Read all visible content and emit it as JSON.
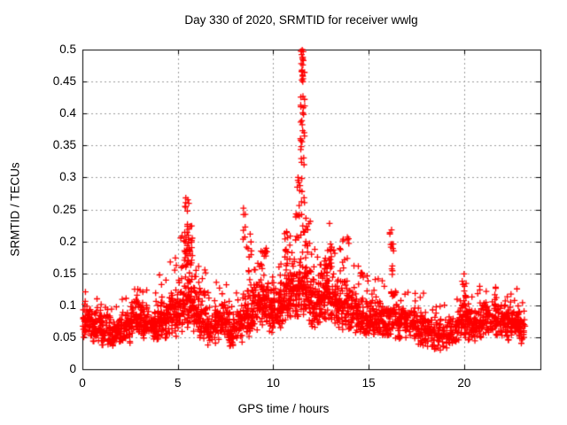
{
  "window": {
    "background": "#ffffff"
  },
  "chart_data": {
    "type": "scatter",
    "title": "Day 330 of 2020, SRMTID for receiver wwlg",
    "xlabel": "GPS time / hours",
    "ylabel": "SRMTID / TECUs",
    "xlim": [
      0,
      24
    ],
    "ylim": [
      0,
      0.5
    ],
    "grid": true,
    "legend": null,
    "x_ticks": [
      {
        "value": 0,
        "label": "0"
      },
      {
        "value": 5,
        "label": "5"
      },
      {
        "value": 10,
        "label": "10"
      },
      {
        "value": 15,
        "label": "15"
      },
      {
        "value": 20,
        "label": "20"
      }
    ],
    "y_ticks": [
      {
        "value": 0.0,
        "label": "0"
      },
      {
        "value": 0.05,
        "label": "0.05"
      },
      {
        "value": 0.1,
        "label": "0.1"
      },
      {
        "value": 0.15,
        "label": "0.15"
      },
      {
        "value": 0.2,
        "label": "0.2"
      },
      {
        "value": 0.25,
        "label": "0.25"
      },
      {
        "value": 0.3,
        "label": "0.3"
      },
      {
        "value": 0.35,
        "label": "0.35"
      },
      {
        "value": 0.4,
        "label": "0.4"
      },
      {
        "value": 0.45,
        "label": "0.45"
      },
      {
        "value": 0.5,
        "label": "0.5"
      }
    ],
    "marker": {
      "shape": "plus",
      "color": "#ff0000",
      "size": 7,
      "stroke": 1.3
    },
    "axis_color": "#000000",
    "grid_color": "#9b9b9b",
    "series_name": "SRMTID",
    "data_extent": {
      "t_start": 0.0,
      "t_end": 23.2,
      "y_min": 0.018,
      "y_max": 0.5
    },
    "notable_peaks": [
      {
        "t": 5.45,
        "y": 0.27
      },
      {
        "t": 8.45,
        "y": 0.25
      },
      {
        "t": 10.7,
        "y": 0.215
      },
      {
        "t": 11.5,
        "y": 0.5
      },
      {
        "t": 12.95,
        "y": 0.23
      },
      {
        "t": 13.8,
        "y": 0.21
      },
      {
        "t": 16.2,
        "y": 0.22
      },
      {
        "t": 20.0,
        "y": 0.15
      }
    ],
    "point_cloud": {
      "seed": 1330,
      "note": "Envelope reconstructed from pixels. bins:[t0,t1,count,y_lo,y_hi,tail_hi,tail_frac] bulk band with sparse high tail; columns:[t0,t1,count,y_lo,y_hi] vertical spike columns; extra_points:[t,y] individually read points.",
      "bins": [
        [
          0.0,
          0.5,
          55,
          0.045,
          0.105,
          0.13,
          0.04
        ],
        [
          0.5,
          1.0,
          55,
          0.042,
          0.098,
          0.115,
          0.03
        ],
        [
          1.0,
          1.5,
          50,
          0.035,
          0.092,
          0.105,
          0.03
        ],
        [
          1.5,
          2.0,
          50,
          0.028,
          0.09,
          0.1,
          0.03
        ],
        [
          2.0,
          2.5,
          55,
          0.04,
          0.1,
          0.115,
          0.04
        ],
        [
          2.5,
          3.0,
          58,
          0.05,
          0.112,
          0.128,
          0.05
        ],
        [
          3.0,
          3.5,
          58,
          0.045,
          0.115,
          0.132,
          0.05
        ],
        [
          3.5,
          4.0,
          55,
          0.04,
          0.102,
          0.12,
          0.04
        ],
        [
          4.0,
          4.5,
          58,
          0.045,
          0.12,
          0.148,
          0.06
        ],
        [
          4.5,
          5.0,
          60,
          0.05,
          0.132,
          0.19,
          0.07
        ],
        [
          5.0,
          5.3,
          38,
          0.055,
          0.15,
          0.21,
          0.1
        ],
        [
          5.3,
          5.8,
          60,
          0.065,
          0.155,
          0,
          0
        ],
        [
          5.8,
          6.15,
          45,
          0.055,
          0.145,
          0.165,
          0.08
        ],
        [
          6.15,
          6.5,
          42,
          0.045,
          0.125,
          0.158,
          0.08
        ],
        [
          6.5,
          7.0,
          50,
          0.035,
          0.105,
          0.125,
          0.05
        ],
        [
          7.0,
          7.6,
          62,
          0.045,
          0.115,
          0.14,
          0.06
        ],
        [
          7.6,
          8.1,
          52,
          0.03,
          0.1,
          0.12,
          0.04
        ],
        [
          8.1,
          8.38,
          30,
          0.04,
          0.105,
          0.125,
          0.04
        ],
        [
          8.38,
          8.9,
          60,
          0.05,
          0.125,
          0,
          0
        ],
        [
          8.9,
          9.35,
          55,
          0.06,
          0.148,
          0.168,
          0.08
        ],
        [
          9.35,
          9.75,
          52,
          0.065,
          0.155,
          0.185,
          0.09
        ],
        [
          9.75,
          10.2,
          55,
          0.055,
          0.13,
          0.152,
          0.06
        ],
        [
          10.2,
          10.55,
          45,
          0.06,
          0.14,
          0.168,
          0.07
        ],
        [
          10.55,
          10.95,
          52,
          0.07,
          0.16,
          0,
          0
        ],
        [
          10.95,
          11.45,
          65,
          0.075,
          0.185,
          0,
          0
        ],
        [
          11.45,
          11.7,
          34,
          0.08,
          0.19,
          0,
          0
        ],
        [
          11.7,
          12.0,
          40,
          0.07,
          0.175,
          0.24,
          0.1
        ],
        [
          12.0,
          12.45,
          55,
          0.06,
          0.16,
          0.19,
          0.08
        ],
        [
          12.45,
          12.8,
          45,
          0.07,
          0.168,
          0,
          0
        ],
        [
          12.8,
          13.15,
          45,
          0.075,
          0.175,
          0,
          0
        ],
        [
          13.15,
          13.55,
          48,
          0.06,
          0.158,
          0.19,
          0.08
        ],
        [
          13.55,
          14.1,
          60,
          0.055,
          0.148,
          0,
          0
        ],
        [
          14.1,
          14.65,
          58,
          0.05,
          0.13,
          0.17,
          0.06
        ],
        [
          14.65,
          15.15,
          55,
          0.048,
          0.122,
          0.16,
          0.05
        ],
        [
          15.15,
          15.65,
          55,
          0.048,
          0.12,
          0.162,
          0.05
        ],
        [
          15.65,
          16.05,
          45,
          0.045,
          0.112,
          0.14,
          0.05
        ],
        [
          16.05,
          16.4,
          40,
          0.05,
          0.128,
          0,
          0
        ],
        [
          16.4,
          16.85,
          48,
          0.045,
          0.112,
          0.132,
          0.04
        ],
        [
          16.85,
          17.45,
          58,
          0.04,
          0.11,
          0.136,
          0.05
        ],
        [
          17.45,
          18.05,
          55,
          0.035,
          0.1,
          0.12,
          0.04
        ],
        [
          18.05,
          18.65,
          50,
          0.03,
          0.092,
          0.11,
          0.03
        ],
        [
          18.65,
          19.25,
          50,
          0.028,
          0.09,
          0.106,
          0.03
        ],
        [
          19.25,
          19.75,
          48,
          0.032,
          0.095,
          0.112,
          0.03
        ],
        [
          19.75,
          20.2,
          48,
          0.048,
          0.108,
          0,
          0
        ],
        [
          20.2,
          20.75,
          52,
          0.04,
          0.105,
          0.122,
          0.04
        ],
        [
          20.75,
          21.25,
          52,
          0.045,
          0.11,
          0.13,
          0.05
        ],
        [
          21.25,
          21.85,
          58,
          0.05,
          0.115,
          0.136,
          0.05
        ],
        [
          21.85,
          22.35,
          52,
          0.04,
          0.106,
          0.12,
          0.04
        ],
        [
          22.35,
          22.85,
          52,
          0.045,
          0.11,
          0.126,
          0.04
        ],
        [
          22.85,
          23.2,
          36,
          0.04,
          0.1,
          0.115,
          0.03
        ]
      ],
      "columns": [
        [
          5.32,
          5.58,
          30,
          0.15,
          0.268
        ],
        [
          5.45,
          5.78,
          18,
          0.13,
          0.225
        ],
        [
          8.38,
          8.56,
          6,
          0.19,
          0.252
        ],
        [
          8.6,
          8.88,
          16,
          0.11,
          0.212
        ],
        [
          9.4,
          9.68,
          8,
          0.15,
          0.19
        ],
        [
          10.58,
          10.9,
          16,
          0.13,
          0.215
        ],
        [
          11.13,
          11.42,
          14,
          0.2,
          0.3
        ],
        [
          11.42,
          11.66,
          44,
          0.2,
          0.5
        ],
        [
          11.45,
          11.6,
          7,
          0.46,
          0.5
        ],
        [
          11.66,
          11.92,
          10,
          0.15,
          0.26
        ],
        [
          12.55,
          12.78,
          6,
          0.15,
          0.2
        ],
        [
          12.82,
          13.08,
          10,
          0.16,
          0.23
        ],
        [
          13.6,
          13.98,
          10,
          0.148,
          0.21
        ],
        [
          14.45,
          14.8,
          6,
          0.13,
          0.17
        ],
        [
          16.08,
          16.32,
          12,
          0.125,
          0.22
        ],
        [
          19.88,
          20.12,
          12,
          0.095,
          0.15
        ]
      ],
      "extra_points": [
        [
          11.52,
          0.5
        ],
        [
          11.49,
          0.497
        ],
        [
          11.55,
          0.488
        ],
        [
          11.47,
          0.478
        ],
        [
          5.42,
          0.268
        ],
        [
          8.44,
          0.252
        ],
        [
          11.3,
          0.3
        ],
        [
          10.7,
          0.215
        ],
        [
          16.2,
          0.218
        ],
        [
          12.95,
          0.228
        ],
        [
          20.0,
          0.149
        ]
      ]
    }
  }
}
